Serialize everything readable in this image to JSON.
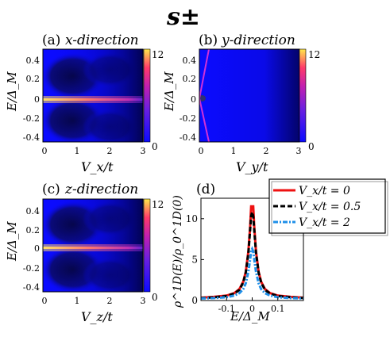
{
  "figure_title": "s±",
  "colors": {
    "map_low": "#0b0bff",
    "map_mid": "#8a1fd6",
    "map_high": "#ff3a7a",
    "map_peak": "#ffd83a",
    "curve_red": "#ee1111",
    "curve_black": "#000000",
    "curve_blue": "#1f8fe8"
  },
  "panels": [
    {
      "label": "(a)",
      "title": "x-direction",
      "xlabel": "V_x/t",
      "ylabel": "E/Δ_M",
      "yticks": [
        "0.4",
        "0.2",
        "0",
        "-0.2",
        "-0.4"
      ],
      "xticks": [
        "0",
        "1",
        "2",
        "3"
      ],
      "colorbar": {
        "max": "12",
        "min": "0"
      },
      "pattern": "bright-zero-line"
    },
    {
      "label": "(b)",
      "title": "y-direction",
      "xlabel": "V_y/t",
      "ylabel": "E/Δ_M",
      "yticks": [
        "0.4",
        "0.2",
        "0",
        "-0.2",
        "-0.4"
      ],
      "xticks": [
        "0",
        "1",
        "2",
        "3"
      ],
      "colorbar": {
        "max": "12",
        "min": "0"
      },
      "pattern": "diagonal-line"
    },
    {
      "label": "(c)",
      "title": "z-direction",
      "xlabel": "V_z/t",
      "ylabel": "E/Δ_M",
      "yticks": [
        "0.4",
        "0.2",
        "0",
        "-0.2",
        "-0.4"
      ],
      "xticks": [
        "0",
        "1",
        "2",
        "3"
      ],
      "colorbar": {
        "max": "12",
        "min": "0"
      },
      "pattern": "bright-zero-line"
    }
  ],
  "chart_data": [
    {
      "type": "heatmap",
      "title": "(a) x-direction",
      "xlabel": "V_x/t",
      "ylabel": "E/Δ_M",
      "xlim": [
        0,
        3
      ],
      "ylim": [
        -0.5,
        0.5
      ],
      "colorbar_range": [
        0,
        12
      ]
    },
    {
      "type": "heatmap",
      "title": "(b) y-direction",
      "xlabel": "V_y/t",
      "ylabel": "E/Δ_M",
      "xlim": [
        0,
        3
      ],
      "ylim": [
        -0.5,
        0.5
      ],
      "colorbar_range": [
        0,
        12
      ]
    },
    {
      "type": "heatmap",
      "title": "(c) z-direction",
      "xlabel": "V_z/t",
      "ylabel": "E/Δ_M",
      "xlim": [
        0,
        3
      ],
      "ylim": [
        -0.5,
        0.5
      ],
      "colorbar_range": [
        0,
        12
      ]
    },
    {
      "type": "line",
      "title": "(d)",
      "xlabel": "E/Δ_M",
      "ylabel": "ρ^1D(E)/ρ_0^1D(0)",
      "xlim": [
        -0.2,
        0.2
      ],
      "ylim": [
        0,
        12.5
      ],
      "xticks": [
        "-0.1",
        "0",
        "0.1"
      ],
      "yticks": [
        "0",
        "5",
        "10"
      ],
      "legend_position": "top-right",
      "series": [
        {
          "name": "V_x/t = 0",
          "color": "#ee1111",
          "style": "solid",
          "peak": 11.5,
          "x": [
            -0.2,
            -0.15,
            -0.1,
            -0.07,
            -0.05,
            -0.035,
            -0.025,
            -0.015,
            -0.008,
            -0.004,
            0,
            0.004,
            0.008,
            0.015,
            0.025,
            0.035,
            0.05,
            0.07,
            0.1,
            0.15,
            0.2
          ],
          "y": [
            0.35,
            0.45,
            0.6,
            0.9,
            1.4,
            2.3,
            3.5,
            6.0,
            9.0,
            11.5,
            11.5,
            11.5,
            9.0,
            6.0,
            3.5,
            2.3,
            1.4,
            0.9,
            0.6,
            0.45,
            0.35
          ]
        },
        {
          "name": "V_x/t = 0.5",
          "color": "#000000",
          "style": "dashed",
          "peak": 10.8,
          "x": [
            -0.2,
            -0.15,
            -0.1,
            -0.07,
            -0.05,
            -0.035,
            -0.025,
            -0.015,
            -0.008,
            -0.004,
            0,
            0.004,
            0.008,
            0.015,
            0.025,
            0.035,
            0.05,
            0.07,
            0.1,
            0.15,
            0.2
          ],
          "y": [
            0.3,
            0.4,
            0.55,
            0.85,
            1.3,
            2.2,
            3.4,
            5.8,
            8.6,
            10.3,
            10.8,
            10.3,
            8.6,
            5.8,
            3.4,
            2.2,
            1.3,
            0.85,
            0.55,
            0.4,
            0.3
          ]
        },
        {
          "name": "V_x/t = 2",
          "color": "#1f8fe8",
          "style": "dash-dot",
          "peak": 6.3,
          "x": [
            -0.2,
            -0.15,
            -0.1,
            -0.07,
            -0.05,
            -0.035,
            -0.025,
            -0.015,
            -0.008,
            -0.004,
            0,
            0.004,
            0.008,
            0.015,
            0.025,
            0.035,
            0.05,
            0.07,
            0.1,
            0.15,
            0.2
          ],
          "y": [
            0.25,
            0.3,
            0.4,
            0.6,
            0.9,
            1.4,
            2.1,
            3.5,
            5.0,
            6.0,
            6.3,
            6.0,
            5.0,
            3.5,
            2.1,
            1.4,
            0.9,
            0.6,
            0.4,
            0.3,
            0.25
          ]
        }
      ]
    }
  ]
}
